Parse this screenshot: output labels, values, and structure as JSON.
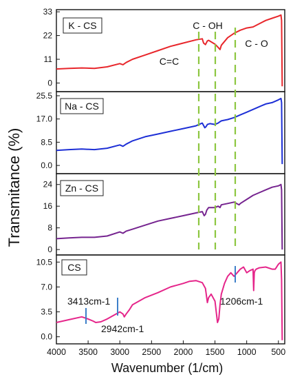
{
  "chart_data": {
    "type": "line",
    "ylabel": "Transmitance (%)",
    "xlabel": "Wavenumber (1/cm)",
    "xlim": [
      4000,
      400
    ],
    "xticks": [
      "4000",
      "3500",
      "3000",
      "2500",
      "2000",
      "1500",
      "1000",
      "500"
    ],
    "panels": [
      {
        "name": "K - CS",
        "color": "#e8262b",
        "ylim": [
          -4,
          34
        ],
        "yticks": [
          "0",
          "11",
          "22",
          "33"
        ],
        "annotations": [
          "C=C",
          "C - OH",
          "C - O"
        ],
        "x": [
          4000,
          3800,
          3600,
          3400,
          3200,
          3000,
          2950,
          2900,
          2800,
          2600,
          2400,
          2200,
          2000,
          1800,
          1700,
          1680,
          1650,
          1620,
          1600,
          1500,
          1450,
          1420,
          1400,
          1300,
          1200,
          1100,
          1000,
          900,
          800,
          700,
          600,
          500,
          460,
          450,
          440
        ],
        "values": [
          6.5,
          6.8,
          7.0,
          6.8,
          7.5,
          9.0,
          8.5,
          9.5,
          11.0,
          13.0,
          15.0,
          17.0,
          18.5,
          20.0,
          20.5,
          18.5,
          17.8,
          19.5,
          19.8,
          18.0,
          16.5,
          15.5,
          17.5,
          21.0,
          23.0,
          24.5,
          25.5,
          26.0,
          27.5,
          29.0,
          30.0,
          31.0,
          31.5,
          29.0,
          -1.5
        ]
      },
      {
        "name": "Na - CS",
        "color": "#1d2fd6",
        "ylim": [
          -3,
          27
        ],
        "yticks": [
          "0.0",
          "8.5",
          "17.0",
          "25.5"
        ],
        "x": [
          4000,
          3800,
          3600,
          3400,
          3200,
          3000,
          2950,
          2900,
          2800,
          2600,
          2400,
          2200,
          2000,
          1800,
          1700,
          1660,
          1640,
          1620,
          1580,
          1500,
          1450,
          1420,
          1400,
          1300,
          1200,
          1100,
          1000,
          900,
          800,
          700,
          600,
          500,
          460,
          450,
          440
        ],
        "values": [
          5.5,
          5.8,
          6.0,
          5.8,
          6.3,
          7.5,
          7.0,
          7.8,
          9.0,
          10.5,
          11.5,
          12.5,
          13.5,
          14.5,
          15.5,
          13.8,
          14.2,
          15.0,
          15.3,
          15.0,
          15.5,
          16.0,
          16.3,
          16.8,
          17.5,
          18.5,
          19.5,
          20.5,
          21.5,
          22.5,
          23.0,
          24.0,
          24.5,
          23.0,
          0.5
        ]
      },
      {
        "name": "Zn - CS",
        "color": "#75238f",
        "ylim": [
          -2,
          28
        ],
        "yticks": [
          "0",
          "8",
          "16",
          "24"
        ],
        "x": [
          4000,
          3800,
          3600,
          3400,
          3200,
          3000,
          2950,
          2900,
          2800,
          2600,
          2400,
          2200,
          2000,
          1800,
          1700,
          1670,
          1650,
          1630,
          1600,
          1500,
          1450,
          1420,
          1400,
          1300,
          1200,
          1120,
          1100,
          1000,
          900,
          800,
          700,
          600,
          500,
          460,
          450,
          440
        ],
        "values": [
          4.0,
          4.3,
          4.5,
          4.5,
          5.0,
          6.5,
          6.0,
          6.8,
          7.5,
          9.0,
          10.5,
          11.5,
          12.5,
          13.5,
          14.0,
          12.5,
          13.0,
          14.5,
          15.5,
          15.5,
          16.0,
          15.5,
          16.5,
          17.0,
          17.5,
          16.5,
          17.0,
          18.5,
          20.0,
          21.0,
          22.0,
          23.0,
          23.5,
          24.0,
          22.0,
          0.0
        ]
      },
      {
        "name": "CS",
        "color": "#e5258a",
        "ylim": [
          -1,
          11.5
        ],
        "yticks": [
          "0.0",
          "3.5",
          "7.0",
          "10.5"
        ],
        "annotations": [
          "3413cm-1",
          "2942cm-1",
          "1206cm-1"
        ],
        "x": [
          4000,
          3800,
          3600,
          3500,
          3420,
          3380,
          3300,
          3200,
          3100,
          3000,
          2950,
          2930,
          2900,
          2850,
          2800,
          2600,
          2400,
          2200,
          2000,
          1900,
          1800,
          1700,
          1650,
          1620,
          1600,
          1560,
          1500,
          1480,
          1460,
          1440,
          1420,
          1400,
          1350,
          1300,
          1250,
          1200,
          1150,
          1100,
          1050,
          1000,
          950,
          900,
          890,
          880,
          870,
          850,
          800,
          700,
          600,
          550,
          500,
          460,
          450,
          440
        ],
        "values": [
          2.0,
          2.4,
          2.8,
          2.5,
          2.2,
          2.0,
          2.1,
          2.5,
          3.0,
          3.5,
          3.2,
          2.8,
          3.2,
          3.8,
          4.5,
          5.5,
          6.2,
          7.0,
          7.5,
          7.8,
          7.9,
          7.6,
          6.8,
          4.8,
          5.5,
          6.0,
          5.0,
          3.5,
          2.0,
          2.5,
          4.5,
          6.0,
          7.5,
          8.5,
          9.0,
          8.5,
          9.0,
          9.5,
          9.8,
          9.0,
          9.3,
          9.5,
          6.5,
          9.0,
          9.3,
          9.5,
          9.7,
          9.8,
          9.5,
          9.5,
          10.2,
          10.5,
          8.0,
          -0.5
        ]
      }
    ]
  }
}
